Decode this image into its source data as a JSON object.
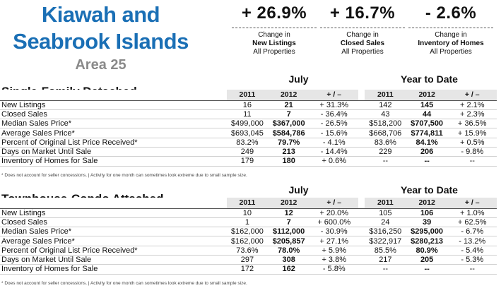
{
  "header": {
    "title_line1": "Kiawah and",
    "title_line2": "Seabrook Islands",
    "area": "Area 25"
  },
  "kpis": [
    {
      "value": "+ 26.9%",
      "line1": "Change in",
      "line2": "New Listings",
      "line3": "All Properties"
    },
    {
      "value": "+ 16.7%",
      "line1": "Change in",
      "line2": "Closed Sales",
      "line3": "All Properties"
    },
    {
      "value": "- 2.6%",
      "line1": "Change in",
      "line2": "Inventory of Homes",
      "line3": "All Properties"
    }
  ],
  "columns": [
    "2011",
    "2012",
    "+ / –",
    "2011",
    "2012",
    "+ / –"
  ],
  "period_labels": {
    "left": "July",
    "right": "Year to Date"
  },
  "sections": [
    {
      "title": "Single-Family Detached",
      "rows": [
        [
          "New Listings",
          "16",
          "21",
          "+ 31.3%",
          "142",
          "145",
          "+ 2.1%"
        ],
        [
          "Closed Sales",
          "11",
          "7",
          "- 36.4%",
          "43",
          "44",
          "+ 2.3%"
        ],
        [
          "Median Sales Price*",
          "$499,000",
          "$367,000",
          "- 26.5%",
          "$518,200",
          "$707,500",
          "+ 36.5%"
        ],
        [
          "Average Sales Price*",
          "$693,045",
          "$584,786",
          "- 15.6%",
          "$668,706",
          "$774,811",
          "+ 15.9%"
        ],
        [
          "Percent of Original List Price Received*",
          "83.2%",
          "79.7%",
          "- 4.1%",
          "83.6%",
          "84.1%",
          "+ 0.5%"
        ],
        [
          "Days on Market Until Sale",
          "249",
          "213",
          "- 14.4%",
          "229",
          "206",
          "- 9.8%"
        ],
        [
          "Inventory of Homes for Sale",
          "179",
          "180",
          "+ 0.6%",
          "--",
          "--",
          "--"
        ]
      ]
    },
    {
      "title": "Townhouse-Condo Attached",
      "rows": [
        [
          "New Listings",
          "10",
          "12",
          "+ 20.0%",
          "105",
          "106",
          "+ 1.0%"
        ],
        [
          "Closed Sales",
          "1",
          "7",
          "+ 600.0%",
          "24",
          "39",
          "+ 62.5%"
        ],
        [
          "Median Sales Price*",
          "$162,000",
          "$112,000",
          "- 30.9%",
          "$316,250",
          "$295,000",
          "- 6.7%"
        ],
        [
          "Average Sales Price*",
          "$162,000",
          "$205,857",
          "+ 27.1%",
          "$322,917",
          "$280,213",
          "- 13.2%"
        ],
        [
          "Percent of Original List Price Received*",
          "73.6%",
          "78.0%",
          "+ 5.9%",
          "85.5%",
          "80.9%",
          "- 5.4%"
        ],
        [
          "Days on Market Until Sale",
          "297",
          "308",
          "+ 3.8%",
          "217",
          "205",
          "- 5.3%"
        ],
        [
          "Inventory of Homes for Sale",
          "172",
          "162",
          "- 5.8%",
          "--",
          "--",
          "--"
        ]
      ]
    }
  ],
  "footnote": "* Does not account for seller concessions.  |  Activity for one month can sometimes look extreme due to small sample size."
}
